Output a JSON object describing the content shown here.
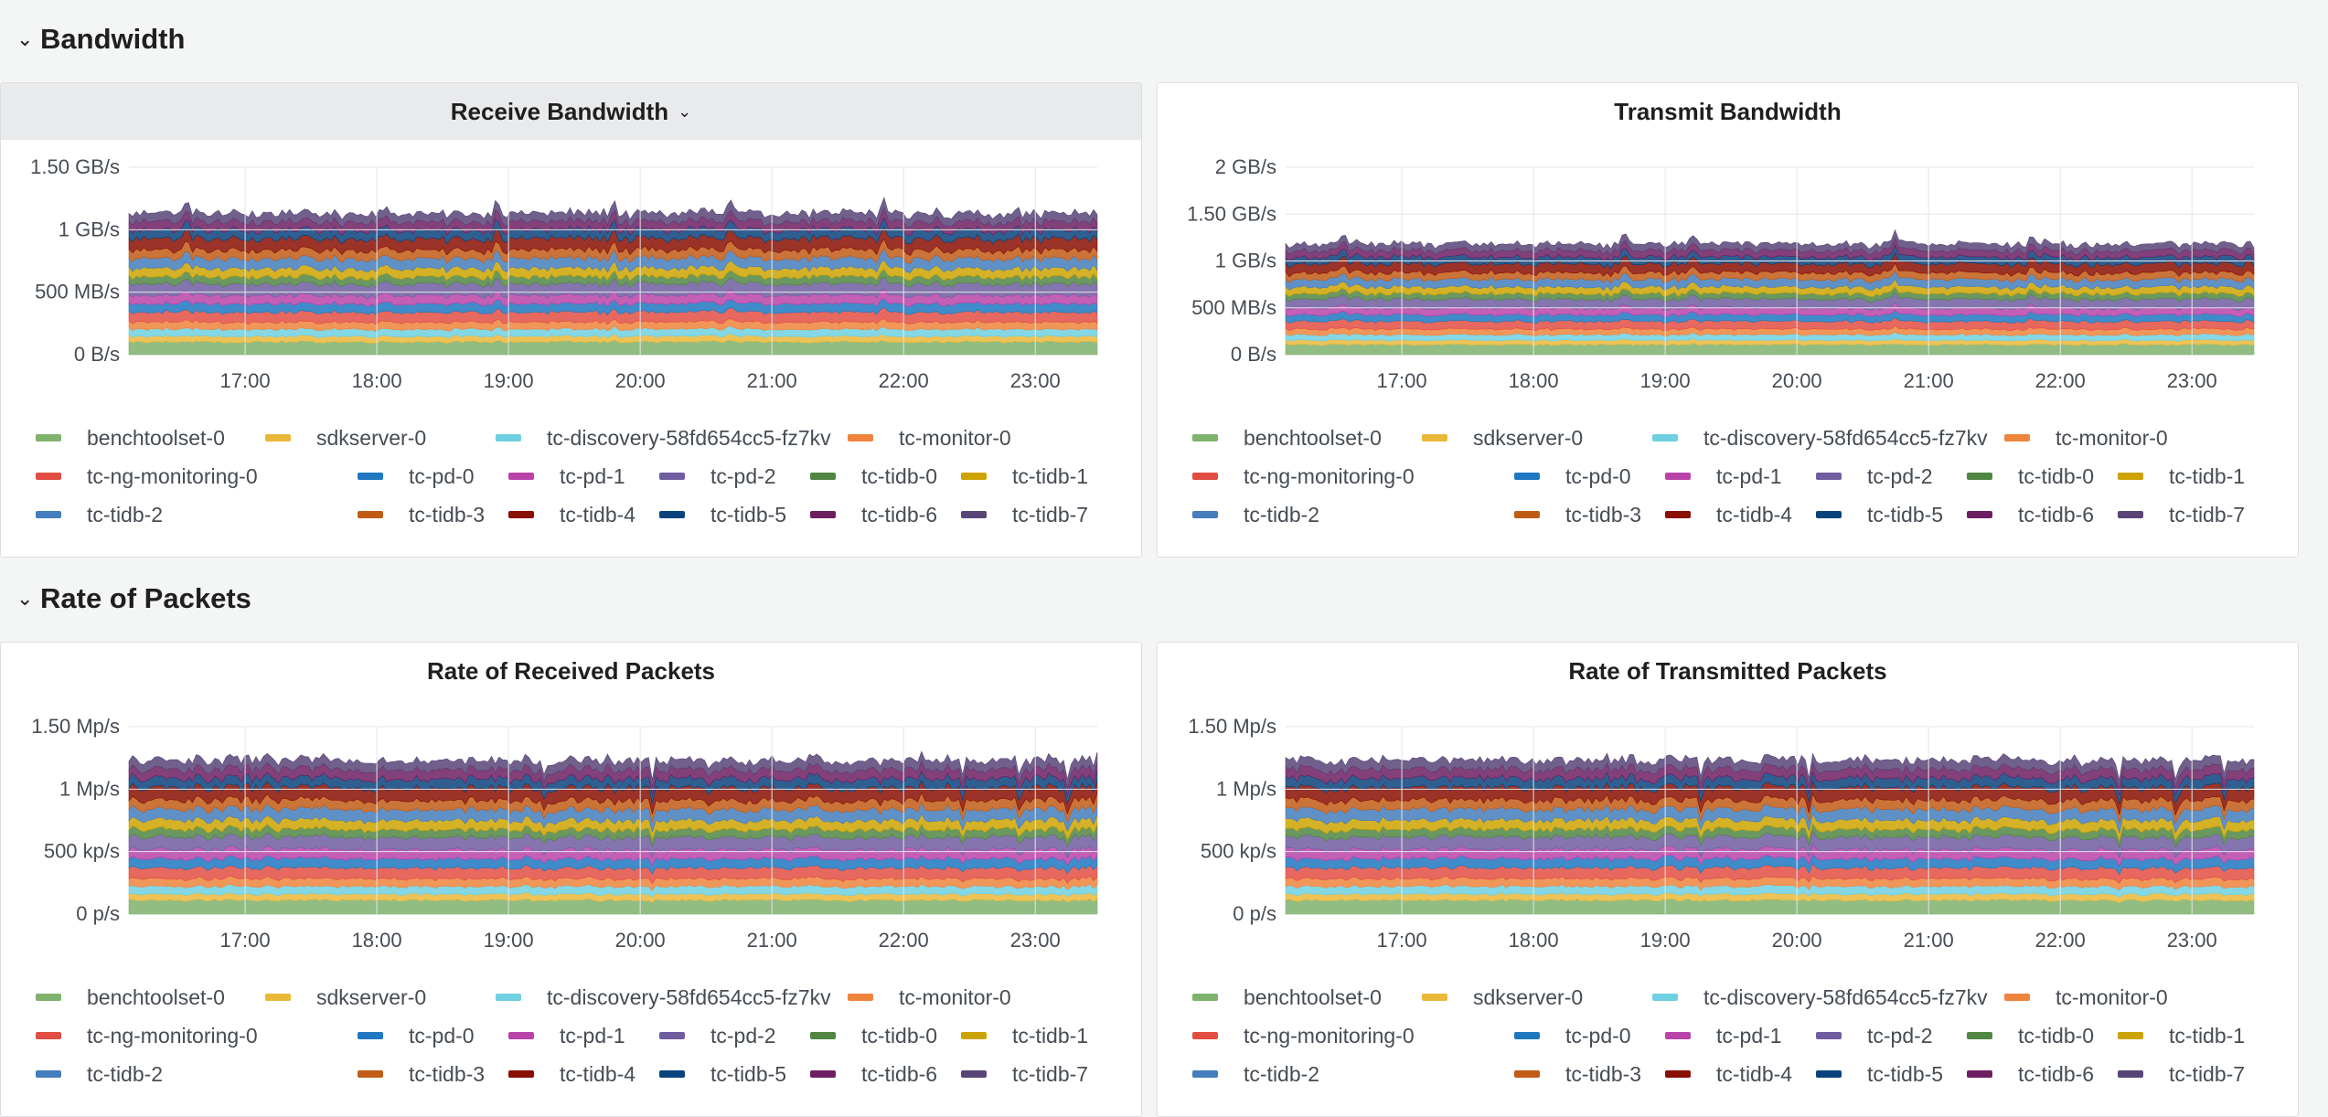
{
  "rows": [
    {
      "title": "Bandwidth"
    },
    {
      "title": "Rate of Packets"
    }
  ],
  "series_names": [
    "benchtoolset-0",
    "sdkserver-0",
    "tc-discovery-58fd654cc5-fz7kv",
    "tc-monitor-0",
    "tc-ng-monitoring-0",
    "tc-pd-0",
    "tc-pd-1",
    "tc-pd-2",
    "tc-tidb-0",
    "tc-tidb-1",
    "tc-tidb-2",
    "tc-tidb-3",
    "tc-tidb-4",
    "tc-tidb-5",
    "tc-tidb-6",
    "tc-tidb-7"
  ],
  "series_colors": [
    "#7eb26d",
    "#eab839",
    "#6ed0e0",
    "#ef843c",
    "#e24d42",
    "#1f78c1",
    "#ba43a9",
    "#705da0",
    "#508642",
    "#cca300",
    "#447ebc",
    "#c15c17",
    "#890f02",
    "#0a437c",
    "#6d1f62",
    "#584477"
  ],
  "chart_data": [
    {
      "type": "area",
      "title": "Receive Bandwidth",
      "stacked": true,
      "x_ticks": [
        "17:00",
        "18:00",
        "19:00",
        "20:00",
        "21:00",
        "22:00",
        "23:00"
      ],
      "y_ticks": [
        "0 B/s",
        "500 MB/s",
        "1 GB/s",
        "1.50 GB/s"
      ],
      "ylim": [
        0,
        1.5
      ],
      "y_unit": "GB/s",
      "total_level": 1.15,
      "spikes": [
        0.06,
        0.38,
        0.5,
        0.62,
        0.78
      ],
      "legend_labels": [
        "benchtoolset-0",
        "sdkserver-0",
        "tc-discovery-58fd654cc5-fz7kv",
        "tc-monitor-0",
        "tc-ng-monitoring-0",
        "tc-pd-0",
        "tc-pd-1",
        "tc-pd-2",
        "tc-tidb-0",
        "tc-tidb-1",
        "tc-tidb-2",
        "tc-tidb-3",
        "tc-tidb-4",
        "tc-tidb-5",
        "tc-tidb-6",
        "tc-tidb-7"
      ]
    },
    {
      "type": "area",
      "title": "Transmit Bandwidth",
      "stacked": true,
      "x_ticks": [
        "17:00",
        "18:00",
        "19:00",
        "20:00",
        "21:00",
        "22:00",
        "23:00"
      ],
      "y_ticks": [
        "0 B/s",
        "500 MB/s",
        "1 GB/s",
        "1.50 GB/s",
        "2 GB/s"
      ],
      "ylim": [
        0,
        2
      ],
      "y_unit": "GB/s",
      "total_level": 1.2,
      "spikes": [
        0.06,
        0.35,
        0.42,
        0.63,
        0.77
      ],
      "legend_labels": [
        "benchtoolset-0",
        "sdkserver-0",
        "tc-discovery-58fd654cc5-fz7kv",
        "tc-monitor-0",
        "tc-ng-monitoring-0",
        "tc-pd-0",
        "tc-pd-1",
        "tc-pd-2",
        "tc-tidb-0",
        "tc-tidb-1",
        "tc-tidb-2",
        "tc-tidb-3",
        "tc-tidb-4",
        "tc-tidb-5",
        "tc-tidb-6",
        "tc-tidb-7"
      ]
    },
    {
      "type": "area",
      "title": "Rate of Received Packets",
      "stacked": true,
      "x_ticks": [
        "17:00",
        "18:00",
        "19:00",
        "20:00",
        "21:00",
        "22:00",
        "23:00"
      ],
      "y_ticks": [
        "0 p/s",
        "500 kp/s",
        "1 Mp/s",
        "1.50 Mp/s"
      ],
      "ylim": [
        0,
        1.5
      ],
      "y_unit": "Mp/s",
      "total_level": 1.25,
      "spikes": [
        0.43,
        0.54,
        0.86,
        0.92,
        0.97
      ],
      "legend_labels": [
        "benchtoolset-0",
        "sdkserver-0",
        "tc-discovery-58fd654cc5-fz7kv",
        "tc-monitor-0",
        "tc-ng-monitoring-0",
        "tc-pd-0",
        "tc-pd-1",
        "tc-pd-2",
        "tc-tidb-0",
        "tc-tidb-1",
        "tc-tidb-2",
        "tc-tidb-3",
        "tc-tidb-4",
        "tc-tidb-5",
        "tc-tidb-6",
        "tc-tidb-7"
      ]
    },
    {
      "type": "area",
      "title": "Rate of Transmitted Packets",
      "stacked": true,
      "x_ticks": [
        "17:00",
        "18:00",
        "19:00",
        "20:00",
        "21:00",
        "22:00",
        "23:00"
      ],
      "y_ticks": [
        "0 p/s",
        "500 kp/s",
        "1 Mp/s",
        "1.50 Mp/s"
      ],
      "ylim": [
        0,
        1.5
      ],
      "y_unit": "Mp/s",
      "total_level": 1.25,
      "spikes": [
        0.43,
        0.54,
        0.86,
        0.92,
        0.97
      ],
      "legend_labels": [
        "benchtoolset-0",
        "sdkserver-0",
        "tc-discovery-58fd654cc5-fz7kv",
        "tc-monitor-0",
        "tc-ng-monitoring-0",
        "tc-pd-0",
        "tc-pd-1",
        "tc-pd-2",
        "tc-tidb-0",
        "tc-tidb-1",
        "tc-tidb-2",
        "tc-tidb-3",
        "tc-tidb-4",
        "tc-tidb-5",
        "tc-tidb-6",
        "tc-tidb-7"
      ]
    }
  ]
}
